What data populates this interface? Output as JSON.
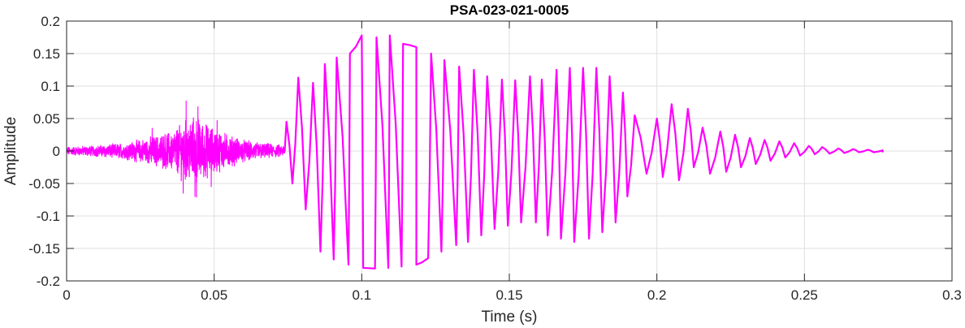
{
  "chart_data": {
    "type": "line",
    "title": "PSA-023-021-0005",
    "xlabel": "Time (s)",
    "ylabel": "Amplitude",
    "xlim": [
      0,
      0.3
    ],
    "ylim": [
      -0.2,
      0.2
    ],
    "grid": true,
    "x_ticks": [
      0,
      0.05,
      0.1,
      0.15,
      0.2,
      0.25,
      0.3
    ],
    "x_tick_labels": [
      "0",
      "0.05",
      "0.1",
      "0.15",
      "0.2",
      "0.25",
      "0.3"
    ],
    "y_ticks": [
      0.2,
      0.15,
      0.1,
      0.05,
      0,
      -0.05,
      -0.1,
      -0.15,
      -0.2
    ],
    "y_tick_labels": [
      "0.2",
      "0.15",
      "0.1",
      "0.05",
      "0",
      "-0.05",
      "-0.1",
      "-0.15",
      "-0.2"
    ],
    "series": [
      {
        "color": "#ff00ff",
        "segments": [
          {
            "kind": "noise",
            "x_range": [
              0,
              0.074
            ],
            "envelope": [
              [
                0,
                0.006
              ],
              [
                0.01,
                0.008
              ],
              [
                0.02,
                0.012
              ],
              [
                0.03,
                0.022
              ],
              [
                0.036,
                0.03
              ],
              [
                0.04,
                0.045
              ],
              [
                0.044,
                0.05
              ],
              [
                0.048,
                0.038
              ],
              [
                0.052,
                0.03
              ],
              [
                0.056,
                0.022
              ],
              [
                0.06,
                0.016
              ],
              [
                0.066,
                0.012
              ],
              [
                0.07,
                0.01
              ],
              [
                0.074,
                0.008
              ]
            ],
            "spikes": [
              [
                0.0405,
                0.077
              ],
              [
                0.0445,
                0.068
              ],
              [
                0.0435,
                -0.07
              ],
              [
                0.044,
                -0.071
              ],
              [
                0.0395,
                -0.065
              ],
              [
                0.051,
                0.047
              ],
              [
                0.049,
                -0.055
              ],
              [
                0.029,
                0.035
              ]
            ]
          },
          {
            "kind": "voiced",
            "peaks": [
              [
                0.0745,
                0.045
              ],
              [
                0.0785,
                0.113
              ],
              [
                0.0835,
                0.105
              ],
              [
                0.0875,
                0.134
              ],
              [
                0.0915,
                0.144
              ],
              [
                0.096,
                0.15
              ],
              [
                0.1,
                0.178
              ],
              [
                0.105,
                0.175
              ],
              [
                0.1095,
                0.178
              ],
              [
                0.114,
                0.165
              ],
              [
                0.1185,
                0.16
              ],
              [
                0.1235,
                0.15
              ],
              [
                0.128,
                0.14
              ],
              [
                0.133,
                0.13
              ],
              [
                0.138,
                0.125
              ],
              [
                0.1425,
                0.115
              ],
              [
                0.1475,
                0.11
              ],
              [
                0.152,
                0.109
              ],
              [
                0.157,
                0.115
              ],
              [
                0.161,
                0.11
              ],
              [
                0.166,
                0.125
              ],
              [
                0.1705,
                0.128
              ],
              [
                0.175,
                0.128
              ],
              [
                0.1795,
                0.128
              ],
              [
                0.184,
                0.115
              ],
              [
                0.1885,
                0.09
              ],
              [
                0.1925,
                0.055
              ],
              [
                0.2,
                0.05
              ],
              [
                0.205,
                0.072
              ],
              [
                0.2105,
                0.065
              ],
              [
                0.2155,
                0.036
              ],
              [
                0.2215,
                0.03
              ],
              [
                0.2265,
                0.025
              ],
              [
                0.2315,
                0.02
              ],
              [
                0.2365,
                0.017
              ],
              [
                0.2415,
                0.015
              ],
              [
                0.2465,
                0.012
              ],
              [
                0.2515,
                0.008
              ],
              [
                0.256,
                0.006
              ],
              [
                0.2615,
                0.004
              ],
              [
                0.2665,
                0.003
              ],
              [
                0.2715,
                0.002
              ],
              [
                0.2765,
                0.001
              ]
            ],
            "troughs": [
              [
                0.0765,
                -0.05
              ],
              [
                0.081,
                -0.09
              ],
              [
                0.086,
                -0.155
              ],
              [
                0.0905,
                -0.167
              ],
              [
                0.0955,
                -0.175
              ],
              [
                0.1005,
                -0.18
              ],
              [
                0.1045,
                -0.181
              ],
              [
                0.109,
                -0.18
              ],
              [
                0.1135,
                -0.178
              ],
              [
                0.1185,
                -0.175
              ],
              [
                0.1225,
                -0.165
              ],
              [
                0.127,
                -0.155
              ],
              [
                0.132,
                -0.145
              ],
              [
                0.136,
                -0.14
              ],
              [
                0.1405,
                -0.13
              ],
              [
                0.145,
                -0.12
              ],
              [
                0.1495,
                -0.115
              ],
              [
                0.154,
                -0.11
              ],
              [
                0.159,
                -0.11
              ],
              [
                0.163,
                -0.13
              ],
              [
                0.1675,
                -0.135
              ],
              [
                0.172,
                -0.14
              ],
              [
                0.177,
                -0.135
              ],
              [
                0.1815,
                -0.125
              ],
              [
                0.186,
                -0.11
              ],
              [
                0.19,
                -0.07
              ],
              [
                0.1965,
                -0.035
              ],
              [
                0.202,
                -0.04
              ],
              [
                0.2075,
                -0.045
              ],
              [
                0.2125,
                -0.025
              ],
              [
                0.218,
                -0.035
              ],
              [
                0.2235,
                -0.032
              ],
              [
                0.2285,
                -0.025
              ],
              [
                0.2335,
                -0.02
              ],
              [
                0.2385,
                -0.015
              ],
              [
                0.2435,
                -0.01
              ],
              [
                0.2485,
                -0.007
              ],
              [
                0.2535,
                -0.005
              ],
              [
                0.2585,
                -0.004
              ],
              [
                0.2635,
                -0.003
              ],
              [
                0.2685,
                -0.002
              ],
              [
                0.2735,
                -0.002
              ],
              [
                0.2765,
                -0.001
              ]
            ]
          }
        ]
      }
    ]
  }
}
